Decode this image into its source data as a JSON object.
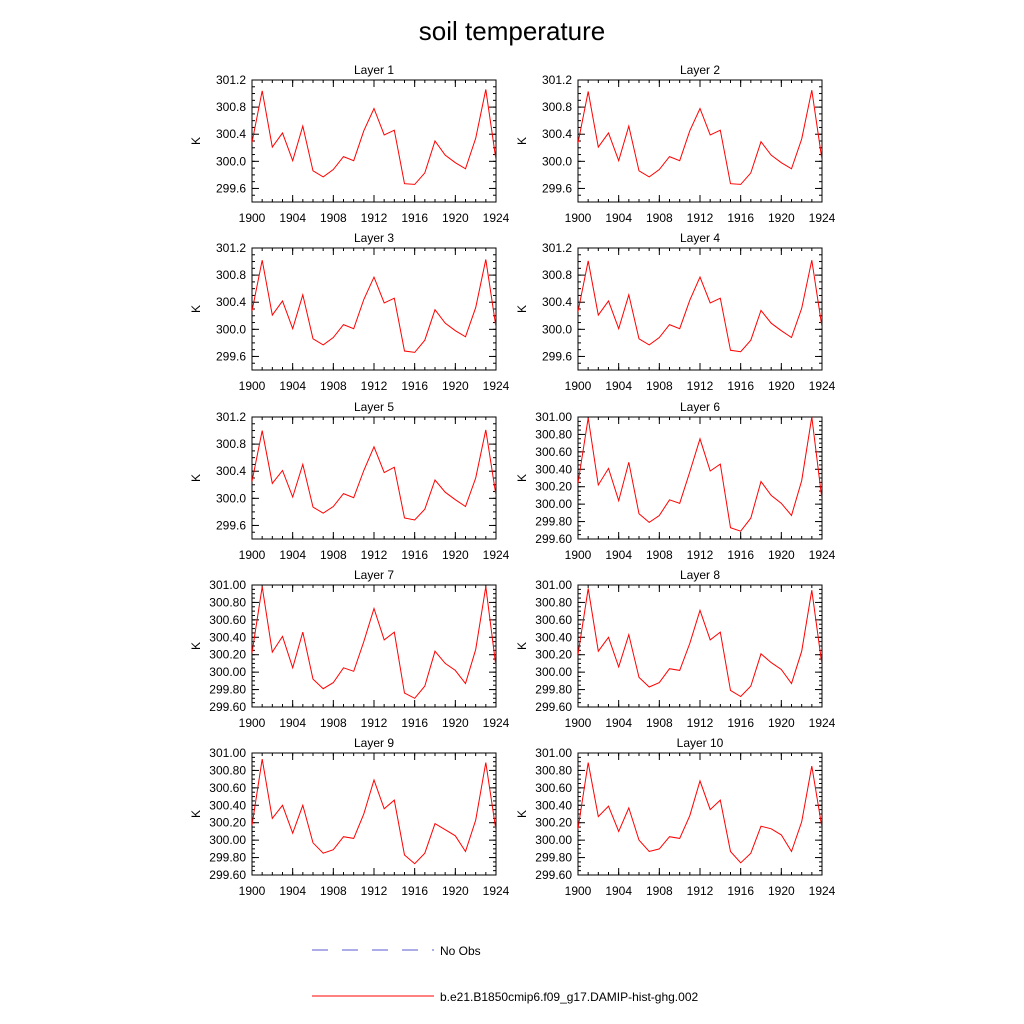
{
  "title": "soil temperature",
  "legend": [
    {
      "label": "No Obs",
      "color": "#5a5ad2",
      "style": "dashed"
    },
    {
      "label": "b.e21.B1850cmip6.f09_g17.DAMIP-hist-ghg.002",
      "color": "#ff0000",
      "style": "solid"
    }
  ],
  "chart_data": [
    {
      "type": "line",
      "title": "Layer 1",
      "ylabel": "K",
      "xlim": [
        1900,
        1924
      ],
      "ylim": [
        299.4,
        301.2
      ],
      "x_ticks": [
        "1900",
        "1904",
        "1908",
        "1912",
        "1916",
        "1920",
        "1924"
      ],
      "y_ticks": [
        "301.2",
        "300.8",
        "300.4",
        "300.0",
        "299.6"
      ],
      "series": [
        {
          "color": "#ff0000",
          "x": [
            1900,
            1901,
            1902,
            1903,
            1904,
            1905,
            1906,
            1907,
            1908,
            1909,
            1910,
            1911,
            1912,
            1913,
            1914,
            1915,
            1916,
            1917,
            1918,
            1919,
            1920,
            1921,
            1922,
            1923,
            1924
          ],
          "values": [
            300.28,
            301.04,
            300.21,
            300.42,
            300.01,
            300.52,
            299.86,
            299.77,
            299.88,
            300.07,
            300.01,
            300.45,
            300.78,
            300.39,
            300.46,
            299.67,
            299.66,
            299.83,
            300.3,
            300.09,
            299.98,
            299.89,
            300.34,
            301.06,
            300.02
          ]
        }
      ]
    },
    {
      "type": "line",
      "title": "Layer 2",
      "ylabel": "K",
      "xlim": [
        1900,
        1924
      ],
      "ylim": [
        299.4,
        301.2
      ],
      "x_ticks": [
        "1900",
        "1904",
        "1908",
        "1912",
        "1916",
        "1920",
        "1924"
      ],
      "y_ticks": [
        "301.2",
        "300.8",
        "300.4",
        "300.0",
        "299.6"
      ],
      "series": [
        {
          "color": "#ff0000",
          "x": [
            1900,
            1901,
            1902,
            1903,
            1904,
            1905,
            1906,
            1907,
            1908,
            1909,
            1910,
            1911,
            1912,
            1913,
            1914,
            1915,
            1916,
            1917,
            1918,
            1919,
            1920,
            1921,
            1922,
            1923,
            1924
          ],
          "values": [
            300.27,
            301.03,
            300.21,
            300.42,
            300.01,
            300.52,
            299.86,
            299.77,
            299.88,
            300.07,
            300.01,
            300.45,
            300.78,
            300.39,
            300.46,
            299.67,
            299.66,
            299.83,
            300.29,
            300.09,
            299.98,
            299.89,
            300.33,
            301.05,
            300.02
          ]
        }
      ]
    },
    {
      "type": "line",
      "title": "Layer 3",
      "ylabel": "K",
      "xlim": [
        1900,
        1924
      ],
      "ylim": [
        299.4,
        301.2
      ],
      "x_ticks": [
        "1900",
        "1904",
        "1908",
        "1912",
        "1916",
        "1920",
        "1924"
      ],
      "y_ticks": [
        "301.2",
        "300.8",
        "300.4",
        "300.0",
        "299.6"
      ],
      "series": [
        {
          "color": "#ff0000",
          "x": [
            1900,
            1901,
            1902,
            1903,
            1904,
            1905,
            1906,
            1907,
            1908,
            1909,
            1910,
            1911,
            1912,
            1913,
            1914,
            1915,
            1916,
            1917,
            1918,
            1919,
            1920,
            1921,
            1922,
            1923,
            1924
          ],
          "values": [
            300.27,
            301.02,
            300.21,
            300.42,
            300.01,
            300.51,
            299.86,
            299.77,
            299.88,
            300.07,
            300.01,
            300.44,
            300.77,
            300.39,
            300.46,
            299.68,
            299.66,
            299.84,
            300.29,
            300.09,
            299.98,
            299.89,
            300.32,
            301.03,
            300.03
          ]
        }
      ]
    },
    {
      "type": "line",
      "title": "Layer 4",
      "ylabel": "K",
      "xlim": [
        1900,
        1924
      ],
      "ylim": [
        299.4,
        301.2
      ],
      "x_ticks": [
        "1900",
        "1904",
        "1908",
        "1912",
        "1916",
        "1920",
        "1924"
      ],
      "y_ticks": [
        "301.2",
        "300.8",
        "300.4",
        "300.0",
        "299.6"
      ],
      "series": [
        {
          "color": "#ff0000",
          "x": [
            1900,
            1901,
            1902,
            1903,
            1904,
            1905,
            1906,
            1907,
            1908,
            1909,
            1910,
            1911,
            1912,
            1913,
            1914,
            1915,
            1916,
            1917,
            1918,
            1919,
            1920,
            1921,
            1922,
            1923,
            1924
          ],
          "values": [
            300.26,
            301.01,
            300.21,
            300.42,
            300.01,
            300.51,
            299.86,
            299.77,
            299.88,
            300.07,
            300.01,
            300.43,
            300.77,
            300.39,
            300.46,
            299.69,
            299.67,
            299.84,
            300.28,
            300.09,
            299.98,
            299.88,
            300.31,
            301.02,
            300.03
          ]
        }
      ]
    },
    {
      "type": "line",
      "title": "Layer 5",
      "ylabel": "K",
      "xlim": [
        1900,
        1924
      ],
      "ylim": [
        299.4,
        301.2
      ],
      "x_ticks": [
        "1900",
        "1904",
        "1908",
        "1912",
        "1916",
        "1920",
        "1924"
      ],
      "y_ticks": [
        "301.2",
        "300.8",
        "300.4",
        "300.0",
        "299.6"
      ],
      "series": [
        {
          "color": "#ff0000",
          "x": [
            1900,
            1901,
            1902,
            1903,
            1904,
            1905,
            1906,
            1907,
            1908,
            1909,
            1910,
            1911,
            1912,
            1913,
            1914,
            1915,
            1916,
            1917,
            1918,
            1919,
            1920,
            1921,
            1922,
            1923,
            1924
          ],
          "values": [
            300.25,
            301.0,
            300.22,
            300.41,
            300.02,
            300.5,
            299.87,
            299.78,
            299.88,
            300.07,
            300.01,
            300.41,
            300.76,
            300.38,
            300.46,
            299.71,
            299.68,
            299.84,
            300.27,
            300.09,
            299.98,
            299.88,
            300.3,
            301.01,
            300.04
          ]
        }
      ]
    },
    {
      "type": "line",
      "title": "Layer 6",
      "ylabel": "K",
      "xlim": [
        1900,
        1924
      ],
      "ylim": [
        299.6,
        301.0
      ],
      "x_ticks": [
        "1900",
        "1904",
        "1908",
        "1912",
        "1916",
        "1920",
        "1924"
      ],
      "y_ticks": [
        "301.00",
        "300.80",
        "300.60",
        "300.40",
        "300.20",
        "300.00",
        "299.80",
        "299.60"
      ],
      "series": [
        {
          "color": "#ff0000",
          "x": [
            1900,
            1901,
            1902,
            1903,
            1904,
            1905,
            1906,
            1907,
            1908,
            1909,
            1910,
            1911,
            1912,
            1913,
            1914,
            1915,
            1916,
            1917,
            1918,
            1919,
            1920,
            1921,
            1922,
            1923,
            1924
          ],
          "values": [
            300.24,
            300.99,
            300.22,
            300.41,
            300.04,
            300.48,
            299.89,
            299.79,
            299.87,
            300.05,
            300.01,
            300.37,
            300.75,
            300.38,
            300.46,
            299.73,
            299.69,
            299.84,
            300.26,
            300.1,
            300.01,
            299.87,
            300.27,
            301.0,
            300.05
          ]
        }
      ]
    },
    {
      "type": "line",
      "title": "Layer 7",
      "ylabel": "K",
      "xlim": [
        1900,
        1924
      ],
      "ylim": [
        299.6,
        301.0
      ],
      "x_ticks": [
        "1900",
        "1904",
        "1908",
        "1912",
        "1916",
        "1920",
        "1924"
      ],
      "y_ticks": [
        "301.00",
        "300.80",
        "300.60",
        "300.40",
        "300.20",
        "300.00",
        "299.80",
        "299.60"
      ],
      "series": [
        {
          "color": "#ff0000",
          "x": [
            1900,
            1901,
            1902,
            1903,
            1904,
            1905,
            1906,
            1907,
            1908,
            1909,
            1910,
            1911,
            1912,
            1913,
            1914,
            1915,
            1916,
            1917,
            1918,
            1919,
            1920,
            1921,
            1922,
            1923,
            1924
          ],
          "values": [
            300.22,
            300.98,
            300.23,
            300.41,
            300.05,
            300.46,
            299.92,
            299.81,
            299.88,
            300.05,
            300.01,
            300.35,
            300.73,
            300.37,
            300.46,
            299.76,
            299.7,
            299.84,
            300.24,
            300.1,
            300.02,
            299.87,
            300.26,
            300.98,
            300.06
          ]
        }
      ]
    },
    {
      "type": "line",
      "title": "Layer 8",
      "ylabel": "K",
      "xlim": [
        1900,
        1924
      ],
      "ylim": [
        299.6,
        301.0
      ],
      "x_ticks": [
        "1900",
        "1904",
        "1908",
        "1912",
        "1916",
        "1920",
        "1924"
      ],
      "y_ticks": [
        "301.00",
        "300.80",
        "300.60",
        "300.40",
        "300.20",
        "300.00",
        "299.80",
        "299.60"
      ],
      "series": [
        {
          "color": "#ff0000",
          "x": [
            1900,
            1901,
            1902,
            1903,
            1904,
            1905,
            1906,
            1907,
            1908,
            1909,
            1910,
            1911,
            1912,
            1913,
            1914,
            1915,
            1916,
            1917,
            1918,
            1919,
            1920,
            1921,
            1922,
            1923,
            1924
          ],
          "values": [
            300.2,
            300.96,
            300.24,
            300.4,
            300.06,
            300.43,
            299.94,
            299.83,
            299.88,
            300.04,
            300.02,
            300.33,
            300.71,
            300.37,
            300.46,
            299.79,
            299.72,
            299.84,
            300.21,
            300.11,
            300.03,
            299.87,
            300.24,
            300.94,
            300.08
          ]
        }
      ]
    },
    {
      "type": "line",
      "title": "Layer 9",
      "ylabel": "K",
      "xlim": [
        1900,
        1924
      ],
      "ylim": [
        299.6,
        301.0
      ],
      "x_ticks": [
        "1900",
        "1904",
        "1908",
        "1912",
        "1916",
        "1920",
        "1924"
      ],
      "y_ticks": [
        "301.00",
        "300.80",
        "300.60",
        "300.40",
        "300.20",
        "300.00",
        "299.80",
        "299.60"
      ],
      "series": [
        {
          "color": "#ff0000",
          "x": [
            1900,
            1901,
            1902,
            1903,
            1904,
            1905,
            1906,
            1907,
            1908,
            1909,
            1910,
            1911,
            1912,
            1913,
            1914,
            1915,
            1916,
            1917,
            1918,
            1919,
            1920,
            1921,
            1922,
            1923,
            1924
          ],
          "values": [
            300.17,
            300.93,
            300.25,
            300.4,
            300.08,
            300.4,
            299.97,
            299.85,
            299.89,
            300.04,
            300.02,
            300.3,
            300.69,
            300.36,
            300.46,
            299.83,
            299.73,
            299.85,
            300.19,
            300.12,
            300.05,
            299.87,
            300.23,
            300.89,
            300.11
          ]
        }
      ]
    },
    {
      "type": "line",
      "title": "Layer 10",
      "ylabel": "K",
      "xlim": [
        1900,
        1924
      ],
      "ylim": [
        299.6,
        301.0
      ],
      "x_ticks": [
        "1900",
        "1904",
        "1908",
        "1912",
        "1916",
        "1920",
        "1924"
      ],
      "y_ticks": [
        "301.00",
        "300.80",
        "300.60",
        "300.40",
        "300.20",
        "300.00",
        "299.80",
        "299.60"
      ],
      "series": [
        {
          "color": "#ff0000",
          "x": [
            1900,
            1901,
            1902,
            1903,
            1904,
            1905,
            1906,
            1907,
            1908,
            1909,
            1910,
            1911,
            1912,
            1913,
            1914,
            1915,
            1916,
            1917,
            1918,
            1919,
            1920,
            1921,
            1922,
            1923,
            1924
          ],
          "values": [
            300.13,
            300.89,
            300.27,
            300.39,
            300.1,
            300.37,
            300.0,
            299.87,
            299.9,
            300.04,
            300.02,
            300.28,
            300.68,
            300.35,
            300.46,
            299.87,
            299.74,
            299.85,
            300.16,
            300.13,
            300.06,
            299.87,
            300.21,
            300.85,
            300.14
          ]
        }
      ]
    }
  ]
}
